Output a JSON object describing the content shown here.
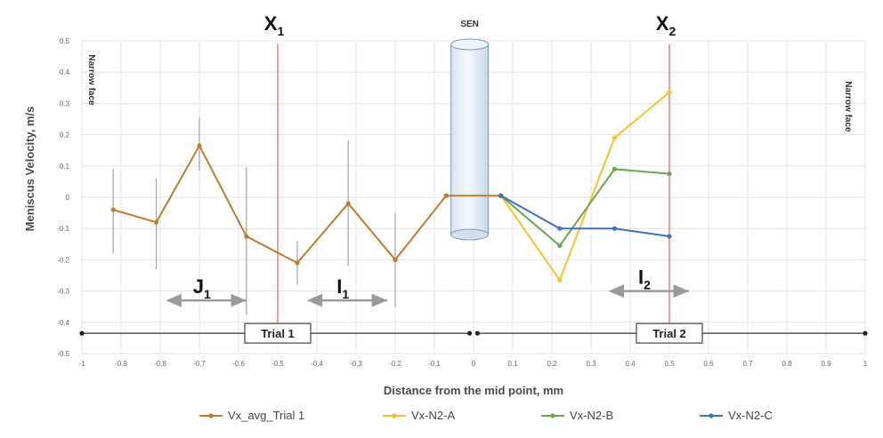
{
  "chart_data": {
    "type": "line",
    "title": "",
    "xlabel": "Distance from the mid point, mm",
    "ylabel": "Meniscus Velocity, m/s",
    "xlim": [
      -1,
      1
    ],
    "ylim": [
      -0.5,
      0.5
    ],
    "x_ticks": [
      "-1",
      "-0.9",
      "-0.8",
      "-0.7",
      "-0.6",
      "-0.5",
      "-0.4",
      "-0.3",
      "-0.2",
      "-0.1",
      "0",
      "0.1",
      "0.2",
      "0.3",
      "0.4",
      "0.5",
      "0.6",
      "0.7",
      "0.8",
      "0.9",
      "1"
    ],
    "y_ticks": [
      "0.5",
      "0.4",
      "0.3",
      "0.2",
      "0.1",
      "0",
      "-0.1",
      "-0.2",
      "-0.3",
      "-0.4",
      "-0.5"
    ],
    "grid": true,
    "legend_position": "bottom",
    "series": [
      {
        "name": "Vx_avg_Trial 1",
        "color": "#c47a2c",
        "x": [
          -0.92,
          -0.81,
          -0.7,
          -0.58,
          -0.45,
          -0.32,
          -0.2,
          -0.07,
          0.07
        ],
        "y": [
          -0.04,
          -0.08,
          0.165,
          -0.125,
          -0.21,
          -0.02,
          -0.2,
          0.005,
          0.005
        ],
        "err_lo": [
          0.14,
          0.15,
          0.08,
          0.25,
          0.07,
          0.2,
          0.15,
          0,
          0
        ],
        "err_hi": [
          0.13,
          0.14,
          0.09,
          0.22,
          0.07,
          0.2,
          0.15,
          0,
          0
        ]
      },
      {
        "name": "Vx-N2-A",
        "color": "#f5c22f",
        "x": [
          0.07,
          0.22,
          0.36,
          0.5
        ],
        "y": [
          0.005,
          -0.265,
          0.19,
          0.335
        ]
      },
      {
        "name": "Vx-N2-B",
        "color": "#6aa84f",
        "x": [
          0.07,
          0.22,
          0.36,
          0.5
        ],
        "y": [
          0.005,
          -0.155,
          0.09,
          0.075
        ]
      },
      {
        "name": "Vx-N2-C",
        "color": "#3d6fc4",
        "x": [
          0.07,
          0.22,
          0.36,
          0.5
        ],
        "y": [
          0.005,
          -0.1,
          -0.1,
          -0.125
        ]
      }
    ],
    "vlines": [
      {
        "label": "X",
        "sub": "1",
        "x": -0.5
      },
      {
        "label": "X",
        "sub": "2",
        "x": 0.5
      }
    ],
    "ranges": [
      {
        "label": "J",
        "sub": "1",
        "x0": -0.78,
        "x1": -0.58,
        "y": -0.33
      },
      {
        "label": "I",
        "sub": "1",
        "x0": -0.42,
        "x1": -0.22,
        "y": -0.33
      },
      {
        "label": "I",
        "sub": "2",
        "x0": 0.35,
        "x1": 0.55,
        "y": -0.3
      }
    ],
    "trials": [
      {
        "label": "Trial 1",
        "x0": -1,
        "x1": -0.01,
        "xc": -0.5
      },
      {
        "label": "Trial 2",
        "x0": 0.01,
        "x1": 1,
        "xc": 0.5
      }
    ],
    "sen_label": "SEN",
    "narrow_face_left": "Narrow face",
    "narrow_face_right": "Narrow face"
  }
}
